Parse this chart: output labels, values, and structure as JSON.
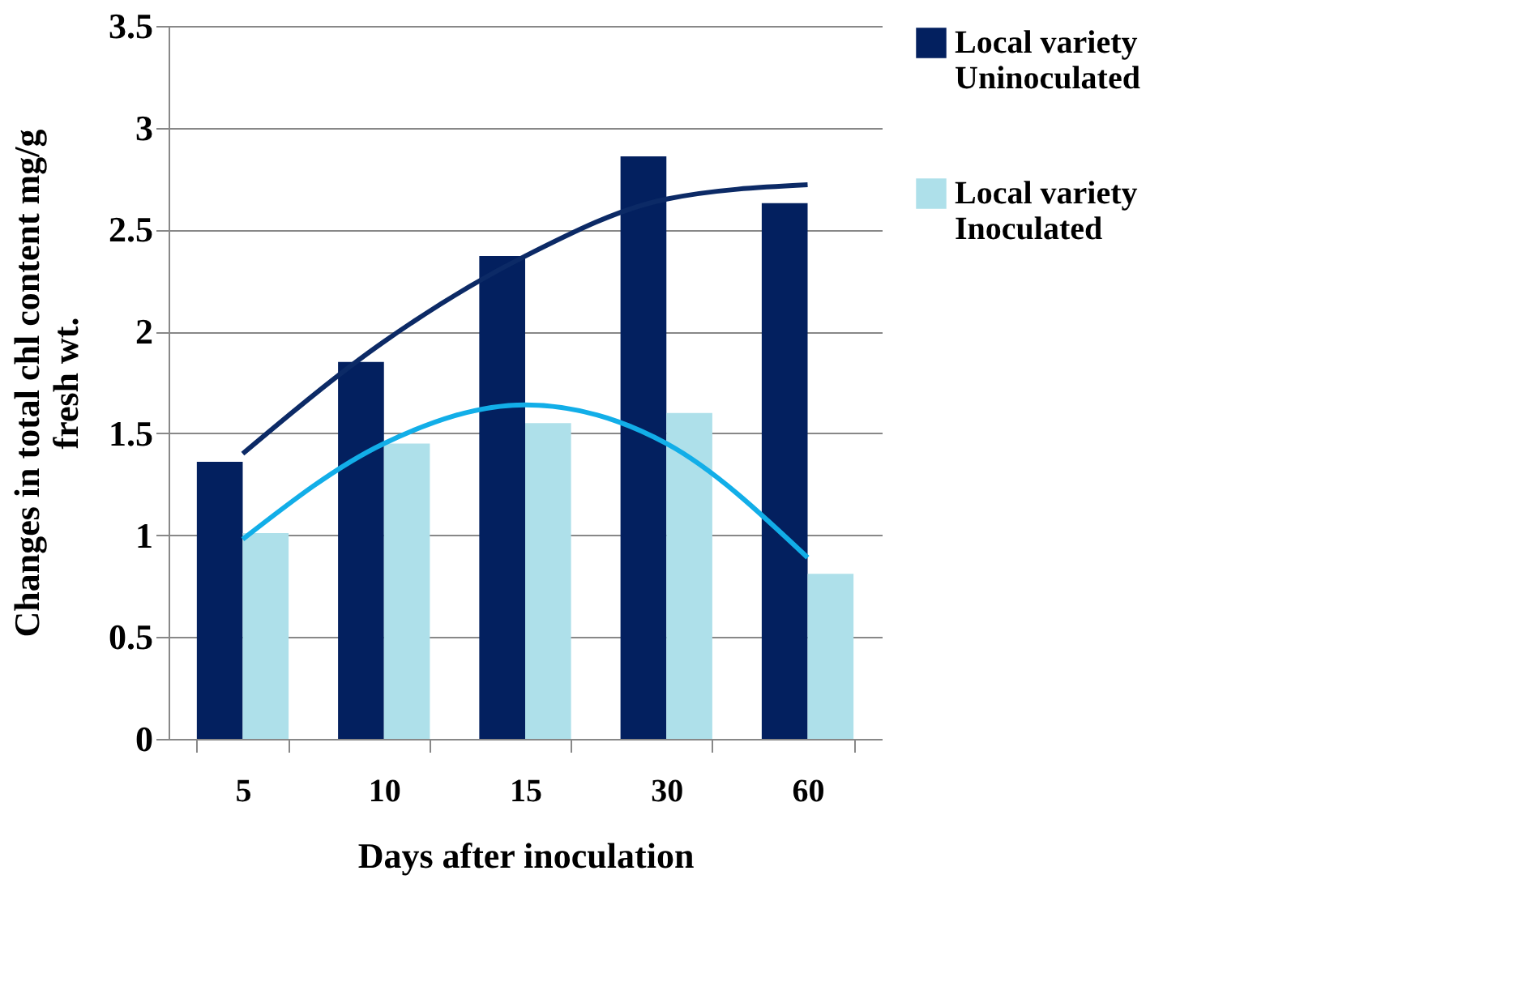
{
  "chart_data": {
    "type": "bar",
    "xlabel": "Days after inoculation",
    "ylabel": "Changes in total chl content mg/g fresh wt.",
    "categories": [
      "5",
      "10",
      "15",
      "30",
      "60"
    ],
    "series": [
      {
        "name": "Local variety Uninoculated",
        "color": "#03205f",
        "values": [
          1.36,
          1.85,
          2.37,
          2.86,
          2.63
        ]
      },
      {
        "name": "Local variety Inoculated",
        "color": "#aee0ea",
        "values": [
          1.01,
          1.45,
          1.55,
          1.6,
          0.81
        ]
      },
      {
        "type": "line",
        "color": "#0c2a66",
        "values": [
          1.4,
          1.95,
          2.37,
          2.65,
          2.72
        ]
      },
      {
        "type": "line",
        "color": "#12aee8",
        "values": [
          0.98,
          1.45,
          1.64,
          1.45,
          0.89
        ]
      }
    ],
    "ylim": [
      0,
      3.5
    ],
    "yticks": [
      0,
      0.5,
      1,
      1.5,
      2,
      2.5,
      3,
      3.5
    ],
    "grid": "y",
    "legend": "right",
    "marker": "none",
    "line_style": "solid"
  }
}
